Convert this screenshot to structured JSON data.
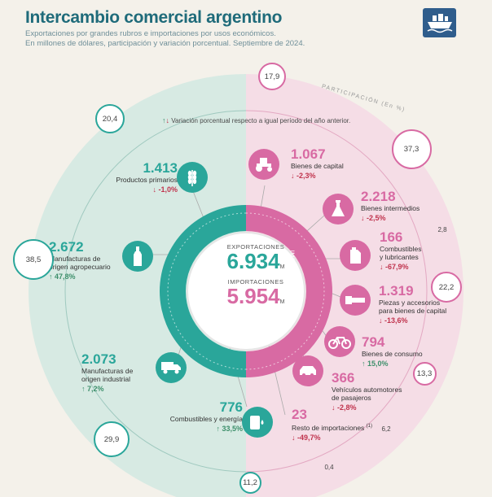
{
  "header": {
    "title": "Intercambio comercial argentino",
    "subtitle_line1": "Exportaciones por grandes rubros e importaciones por usos económicos.",
    "subtitle_line2": "En millones de dólares, participación y variación porcentual. Septiembre de 2024."
  },
  "note": {
    "arrows_up": "↑",
    "arrows_down": "↓",
    "text": "Variación porcentual respecto a igual período del año anterior."
  },
  "center": {
    "exports_label": "EXPORTACIONES",
    "exports_value": "6.934",
    "imports_label": "IMPORTACIONES",
    "imports_value": "5.954",
    "unit": "M",
    "ring_exports": "EXPORTACIONES",
    "ring_imports": "IMPORTACIONES"
  },
  "participation_label": "PARTICIPACIÓN (En %)",
  "colors": {
    "exports": "#2aa69a",
    "imports": "#d86aa3",
    "up": "#3d8f6b",
    "down": "#c0334d"
  },
  "chart_data": {
    "type": "table",
    "title": "Intercambio comercial argentino",
    "exports_total": 6934,
    "imports_total": 5954,
    "exports": [
      {
        "name": "Productos primarios",
        "value": 1413,
        "value_text": "1.413",
        "change_text": "↓ -1,0%",
        "direction": "down",
        "share": 20.4,
        "share_text": "20,4",
        "icon": "wheat-icon"
      },
      {
        "name_line1": "Manufacturas de",
        "name_line2": "origen agropecuario",
        "value": 2672,
        "value_text": "2.672",
        "change_text": "↑ 47,8%",
        "direction": "up",
        "share": 38.5,
        "share_text": "38,5",
        "icon": "bottle-icon"
      },
      {
        "name_line1": "Manufacturas de",
        "name_line2": "origen industrial",
        "value": 2073,
        "value_text": "2.073",
        "change_text": "↑ 7,2%",
        "direction": "up",
        "share": 29.9,
        "share_text": "29,9",
        "icon": "truck-icon"
      },
      {
        "name": "Combustibles y energía",
        "value": 776,
        "value_text": "776",
        "change_text": "↑ 33,5%",
        "direction": "up",
        "share": 11.2,
        "share_text": "11,2",
        "icon": "fuel-icon"
      }
    ],
    "imports": [
      {
        "name": "Bienes de capital",
        "value": 1067,
        "value_text": "1.067",
        "change_text": "↓ -2,3%",
        "direction": "down",
        "share": 17.9,
        "share_text": "17,9",
        "icon": "tractor-icon"
      },
      {
        "name": "Bienes intermedios",
        "value": 2218,
        "value_text": "2.218",
        "change_text": "↓ -2,5%",
        "direction": "down",
        "share": 37.3,
        "share_text": "37,3",
        "icon": "flask-icon"
      },
      {
        "name_line1": "Combustibles",
        "name_line2": "y lubricantes",
        "value": 166,
        "value_text": "166",
        "change_text": "↓ -67,9%",
        "direction": "down",
        "share": 2.8,
        "share_text": "2,8",
        "icon": "jerrycan-icon"
      },
      {
        "name_line1": "Piezas y accesorios",
        "name_line2": "para bienes de capital",
        "value": 1319,
        "value_text": "1.319",
        "change_text": "↓ -13,6%",
        "direction": "down",
        "share": 22.2,
        "share_text": "22,2",
        "icon": "bolt-icon"
      },
      {
        "name": "Bienes de consumo",
        "value": 794,
        "value_text": "794",
        "change_text": "↑ 15,0%",
        "direction": "up",
        "share": 13.3,
        "share_text": "13,3",
        "icon": "bicycle-icon"
      },
      {
        "name_line1": "Vehículos automotores",
        "name_line2": "de pasajeros",
        "value": 366,
        "value_text": "366",
        "change_text": "↓ -2,8%",
        "direction": "down",
        "share": 6.2,
        "share_text": "6,2",
        "icon": "car-icon"
      },
      {
        "name": "Resto de importaciones",
        "footnote": "(1)",
        "value": 23,
        "value_text": "23",
        "change_text": "↓ -49,7%",
        "direction": "down",
        "share": 0.4,
        "share_text": "0,4",
        "icon": "none"
      }
    ]
  }
}
